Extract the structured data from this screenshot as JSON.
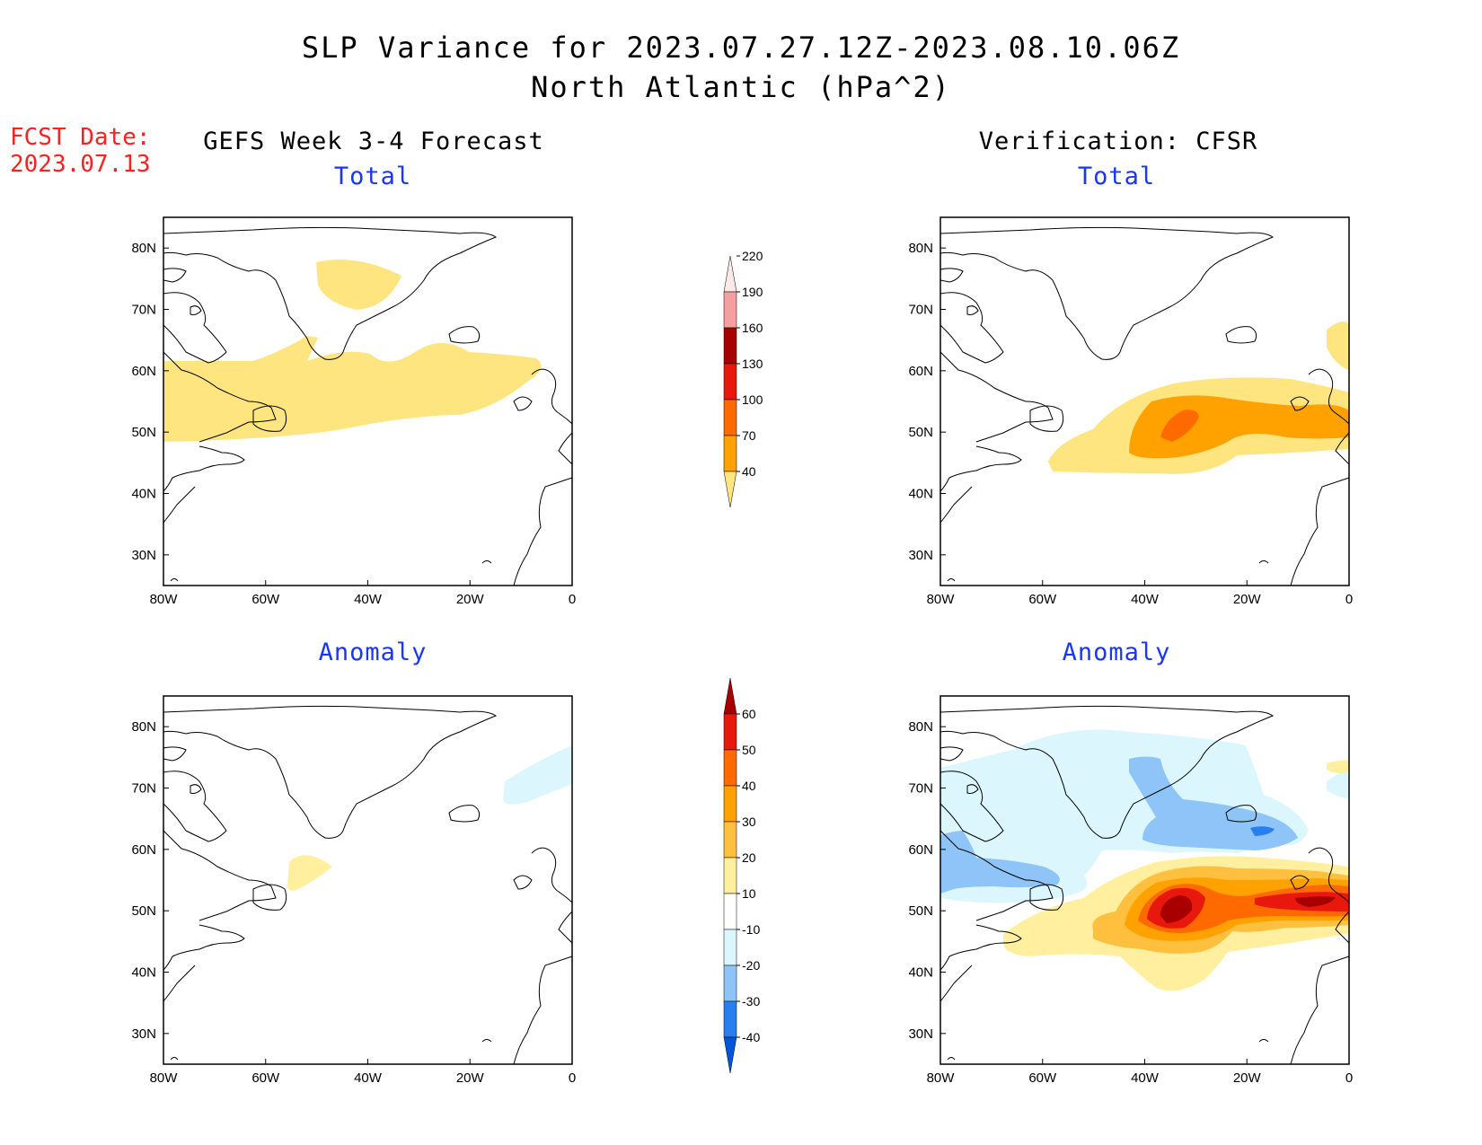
{
  "title": {
    "line1": "SLP Variance for 2023.07.27.12Z-2023.08.10.06Z",
    "line2": "North Atlantic (hPa^2)"
  },
  "fcst_date": {
    "label": "FCST Date:",
    "value": "2023.07.13"
  },
  "columns": {
    "left": "GEFS Week 3-4 Forecast",
    "right": "Verification: CFSR"
  },
  "panels": [
    {
      "id": "fcst-total",
      "title": "Total"
    },
    {
      "id": "verif-total",
      "title": "Total"
    },
    {
      "id": "fcst-anomaly",
      "title": "Anomaly"
    },
    {
      "id": "verif-anomaly",
      "title": "Anomaly"
    }
  ],
  "axes": {
    "lon_ticks": [
      "80W",
      "60W",
      "40W",
      "20W",
      "0"
    ],
    "lat_ticks": [
      "80N",
      "70N",
      "60N",
      "50N",
      "40N",
      "30N"
    ],
    "lon_range": [
      -80,
      0
    ],
    "lat_range": [
      25,
      85
    ]
  },
  "colorbar_total": {
    "levels": [
      "40",
      "70",
      "100",
      "130",
      "160",
      "190",
      "220"
    ],
    "colors": [
      "#ffe57f",
      "#ffa200",
      "#ff6a00",
      "#e8180c",
      "#a80000",
      "#f5a0a0",
      "#fde8e8"
    ]
  },
  "colorbar_anomaly": {
    "levels": [
      "-40",
      "-30",
      "-20",
      "-10",
      "10",
      "20",
      "30",
      "40",
      "50",
      "60"
    ],
    "colors": [
      "#0055d8",
      "#2a7fee",
      "#8ec4f8",
      "#dcf6fd",
      "#ffffff",
      "#ffef9e",
      "#ffc040",
      "#ffa200",
      "#ff6a00",
      "#e8180c",
      "#a80000"
    ]
  },
  "colors": {
    "c40": "#ffe57f",
    "c70": "#ffa200",
    "c100": "#ff6a00",
    "c130": "#e8180c",
    "a10": "#ffef9e",
    "a20": "#ffc040",
    "a30": "#ffa200",
    "a40": "#ff6a00",
    "a50": "#e8180c",
    "a60": "#a80000",
    "n10": "#dcf6fd",
    "n20": "#8ec4f8",
    "n30": "#2a7fee"
  }
}
